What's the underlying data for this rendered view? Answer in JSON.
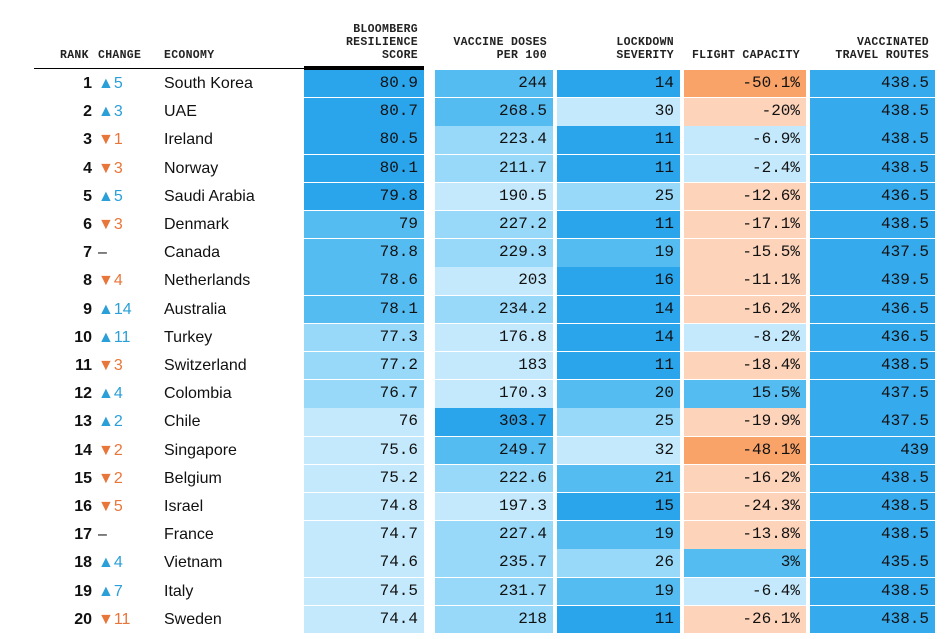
{
  "header": {
    "columns": [
      [
        "RANK"
      ],
      [
        "CHANGE"
      ],
      [
        "ECONOMY"
      ],
      [
        "BLOOMBERG",
        "RESILIENCE",
        "SCORE"
      ],
      [
        "VACCINE DOSES",
        "PER 100"
      ],
      [
        "LOCKDOWN",
        "SEVERITY"
      ],
      [
        "FLIGHT CAPACITY"
      ],
      [
        "VACCINATED",
        "TRAVEL ROUTES"
      ]
    ]
  },
  "table": {
    "rows": [
      [
        "1",
        "▲5",
        "South Korea",
        "80.9",
        "244",
        "14",
        "-50.1%",
        "438.5"
      ],
      [
        "2",
        "▲3",
        "UAE",
        "80.7",
        "268.5",
        "30",
        "-20%",
        "438.5"
      ],
      [
        "3",
        "▼1",
        "Ireland",
        "80.5",
        "223.4",
        "11",
        "-6.9%",
        "438.5"
      ],
      [
        "4",
        "▼3",
        "Norway",
        "80.1",
        "211.7",
        "11",
        "-2.4%",
        "438.5"
      ],
      [
        "5",
        "▲5",
        "Saudi Arabia",
        "79.8",
        "190.5",
        "25",
        "-12.6%",
        "436.5"
      ],
      [
        "6",
        "▼3",
        "Denmark",
        "79",
        "227.2",
        "11",
        "-17.1%",
        "438.5"
      ],
      [
        "7",
        "–",
        "Canada",
        "78.8",
        "229.3",
        "19",
        "-15.5%",
        "437.5"
      ],
      [
        "8",
        "▼4",
        "Netherlands",
        "78.6",
        "203",
        "16",
        "-11.1%",
        "439.5"
      ],
      [
        "9",
        "▲14",
        "Australia",
        "78.1",
        "234.2",
        "14",
        "-16.2%",
        "436.5"
      ],
      [
        "10",
        "▲11",
        "Turkey",
        "77.3",
        "176.8",
        "14",
        "-8.2%",
        "436.5"
      ],
      [
        "11",
        "▼3",
        "Switzerland",
        "77.2",
        "183",
        "11",
        "-18.4%",
        "438.5"
      ],
      [
        "12",
        "▲4",
        "Colombia",
        "76.7",
        "170.3",
        "20",
        "15.5%",
        "437.5"
      ],
      [
        "13",
        "▲2",
        "Chile",
        "76",
        "303.7",
        "25",
        "-19.9%",
        "437.5"
      ],
      [
        "14",
        "▼2",
        "Singapore",
        "75.6",
        "249.7",
        "32",
        "-48.1%",
        "439"
      ],
      [
        "15",
        "▼2",
        "Belgium",
        "75.2",
        "222.6",
        "21",
        "-16.2%",
        "438.5"
      ],
      [
        "16",
        "▼5",
        "Israel",
        "74.8",
        "197.3",
        "15",
        "-24.3%",
        "438.5"
      ],
      [
        "17",
        "–",
        "France",
        "74.7",
        "227.4",
        "19",
        "-13.8%",
        "438.5"
      ],
      [
        "18",
        "▲4",
        "Vietnam",
        "74.6",
        "235.7",
        "26",
        "3%",
        "435.5"
      ],
      [
        "19",
        "▲7",
        "Italy",
        "74.5",
        "231.7",
        "19",
        "-6.4%",
        "438.5"
      ],
      [
        "20",
        "▼11",
        "Sweden",
        "74.4",
        "218",
        "11",
        "-26.1%",
        "438.5"
      ]
    ]
  }
}
